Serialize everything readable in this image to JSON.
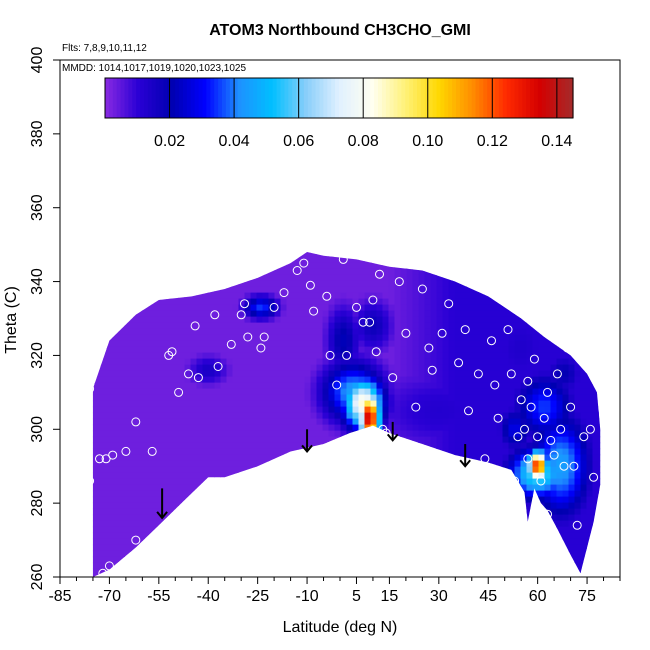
{
  "chart_data": {
    "type": "heatmap",
    "title": "ATOM3 Northbound CH3CHO_GMI",
    "annotation_lines": [
      "Flts: 7,8,9,10,11,12",
      "MMDD: 1014,1017,1019,1020,1023,1025"
    ],
    "xlabel": "Latitude (deg N)",
    "ylabel": "Theta (C)",
    "xlim": [
      -85,
      85
    ],
    "ylim": [
      260,
      400
    ],
    "x_ticks": [
      -85,
      -70,
      -55,
      -40,
      -25,
      -10,
      5,
      15,
      30,
      45,
      60,
      75
    ],
    "x_tick_labels": [
      "-85",
      "-70",
      "-55",
      "-40",
      "-25",
      "-10",
      "5",
      "15",
      "30",
      "45",
      "60",
      "75"
    ],
    "y_ticks": [
      260,
      280,
      300,
      320,
      340,
      360,
      380,
      400
    ],
    "y_tick_labels": [
      "260",
      "280",
      "300",
      "320",
      "340",
      "360",
      "380",
      "400"
    ],
    "grid": false,
    "colorbar": {
      "range": [
        0,
        0.145
      ],
      "tick_values": [
        0.02,
        0.04,
        0.06,
        0.08,
        0.1,
        0.12,
        0.14
      ],
      "tick_labels": [
        "0.02",
        "0.04",
        "0.06",
        "0.08",
        "0.10",
        "0.12",
        "0.14"
      ],
      "placement": "top",
      "colors": [
        "#8a2be2",
        "#2a00d5",
        "#0000b0",
        "#0000ff",
        "#1e90ff",
        "#00bfff",
        "#87cefa",
        "#e0f0ff",
        "#fffff0",
        "#fff176",
        "#ffd700",
        "#ff8c00",
        "#ff2a00",
        "#d40000",
        "#a52a2a"
      ]
    },
    "domain_top_theta": [
      {
        "lat": -75,
        "theta": 311
      },
      {
        "lat": -70,
        "theta": 324
      },
      {
        "lat": -62,
        "theta": 331
      },
      {
        "lat": -55,
        "theta": 335
      },
      {
        "lat": -45,
        "theta": 336
      },
      {
        "lat": -35,
        "theta": 338
      },
      {
        "lat": -25,
        "theta": 341
      },
      {
        "lat": -15,
        "theta": 345
      },
      {
        "lat": -10,
        "theta": 348
      },
      {
        "lat": -5,
        "theta": 347
      },
      {
        "lat": 5,
        "theta": 346
      },
      {
        "lat": 15,
        "theta": 344
      },
      {
        "lat": 25,
        "theta": 343
      },
      {
        "lat": 35,
        "theta": 340
      },
      {
        "lat": 45,
        "theta": 336
      },
      {
        "lat": 55,
        "theta": 330
      },
      {
        "lat": 62,
        "theta": 325
      },
      {
        "lat": 70,
        "theta": 320
      },
      {
        "lat": 75,
        "theta": 315
      },
      {
        "lat": 78,
        "theta": 310
      },
      {
        "lat": 79,
        "theta": 300
      }
    ],
    "domain_bottom_theta": [
      {
        "lat": -75,
        "theta": 260
      },
      {
        "lat": -70,
        "theta": 262
      },
      {
        "lat": -62,
        "theta": 268
      },
      {
        "lat": -55,
        "theta": 274
      },
      {
        "lat": -47,
        "theta": 281
      },
      {
        "lat": -40,
        "theta": 287
      },
      {
        "lat": -35,
        "theta": 287
      },
      {
        "lat": -25,
        "theta": 290
      },
      {
        "lat": -15,
        "theta": 294
      },
      {
        "lat": -5,
        "theta": 296
      },
      {
        "lat": 3,
        "theta": 299
      },
      {
        "lat": 10,
        "theta": 301
      },
      {
        "lat": 15,
        "theta": 299
      },
      {
        "lat": 25,
        "theta": 296
      },
      {
        "lat": 35,
        "theta": 293
      },
      {
        "lat": 45,
        "theta": 291
      },
      {
        "lat": 52,
        "theta": 289
      },
      {
        "lat": 56,
        "theta": 283
      },
      {
        "lat": 57,
        "theta": 275
      },
      {
        "lat": 59,
        "theta": 284
      },
      {
        "lat": 61,
        "theta": 280
      },
      {
        "lat": 63,
        "theta": 278
      },
      {
        "lat": 66,
        "theta": 273
      },
      {
        "lat": 70,
        "theta": 266
      },
      {
        "lat": 73,
        "theta": 261
      },
      {
        "lat": 75,
        "theta": 268
      },
      {
        "lat": 77,
        "theta": 275
      },
      {
        "lat": 79,
        "theta": 285
      },
      {
        "lat": 79,
        "theta": 300
      }
    ],
    "background_value": 0.003,
    "features": [
      {
        "lat": 9,
        "theta": 303,
        "rx": 3,
        "ry": 7,
        "value": 0.14
      },
      {
        "lat": 7,
        "theta": 307,
        "rx": 6,
        "ry": 7,
        "value": 0.085
      },
      {
        "lat": 4,
        "theta": 310,
        "rx": 9,
        "ry": 8,
        "value": 0.045
      },
      {
        "lat": 1,
        "theta": 324,
        "rx": 5,
        "ry": 9,
        "value": 0.022
      },
      {
        "lat": 10,
        "theta": 328,
        "rx": 6,
        "ry": 7,
        "value": 0.018
      },
      {
        "lat": -24,
        "theta": 333,
        "rx": 5,
        "ry": 3,
        "value": 0.035
      },
      {
        "lat": -40,
        "theta": 316,
        "rx": 6,
        "ry": 4,
        "value": 0.015
      },
      {
        "lat": 30,
        "theta": 305,
        "rx": 22,
        "ry": 12,
        "value": 0.012
      },
      {
        "lat": 60,
        "theta": 290,
        "rx": 3,
        "ry": 4,
        "value": 0.13
      },
      {
        "lat": 60,
        "theta": 288,
        "rx": 9,
        "ry": 7,
        "value": 0.06
      },
      {
        "lat": 67,
        "theta": 290,
        "rx": 9,
        "ry": 14,
        "value": 0.045
      },
      {
        "lat": 62,
        "theta": 306,
        "rx": 9,
        "ry": 9,
        "value": 0.035
      },
      {
        "lat": 53,
        "theta": 300,
        "rx": 5,
        "ry": 6,
        "value": 0.028
      },
      {
        "lat": 68,
        "theta": 315,
        "rx": 6,
        "ry": 6,
        "value": 0.02
      },
      {
        "lat": 55,
        "theta": 322,
        "rx": 12,
        "ry": 14,
        "value": 0.013
      }
    ],
    "surface_arrows": [
      {
        "lat": -54,
        "theta_from": 284,
        "theta_to": 276
      },
      {
        "lat": -10,
        "theta_from": 300,
        "theta_to": 294
      },
      {
        "lat": 16,
        "theta_from": 302,
        "theta_to": 297
      },
      {
        "lat": 38,
        "theta_from": 296,
        "theta_to": 290
      }
    ],
    "observations": [
      {
        "lat": -76,
        "theta": 311
      },
      {
        "lat": -77,
        "theta": 296
      },
      {
        "lat": -76,
        "theta": 286
      },
      {
        "lat": -73,
        "theta": 292
      },
      {
        "lat": -71,
        "theta": 292
      },
      {
        "lat": -69,
        "theta": 293
      },
      {
        "lat": -70,
        "theta": 263
      },
      {
        "lat": -72,
        "theta": 261
      },
      {
        "lat": -65,
        "theta": 294
      },
      {
        "lat": -62,
        "theta": 270
      },
      {
        "lat": -62,
        "theta": 302
      },
      {
        "lat": -57,
        "theta": 294
      },
      {
        "lat": -52,
        "theta": 320
      },
      {
        "lat": -51,
        "theta": 321
      },
      {
        "lat": -49,
        "theta": 310
      },
      {
        "lat": -46,
        "theta": 315
      },
      {
        "lat": -44,
        "theta": 328
      },
      {
        "lat": -43,
        "theta": 314
      },
      {
        "lat": -38,
        "theta": 331
      },
      {
        "lat": -37,
        "theta": 317
      },
      {
        "lat": -33,
        "theta": 323
      },
      {
        "lat": -30,
        "theta": 331
      },
      {
        "lat": -29,
        "theta": 334
      },
      {
        "lat": -28,
        "theta": 325
      },
      {
        "lat": -24,
        "theta": 322
      },
      {
        "lat": -23,
        "theta": 325
      },
      {
        "lat": -20,
        "theta": 333
      },
      {
        "lat": -17,
        "theta": 337
      },
      {
        "lat": -13,
        "theta": 343
      },
      {
        "lat": -11,
        "theta": 345
      },
      {
        "lat": -9,
        "theta": 339
      },
      {
        "lat": -8,
        "theta": 332
      },
      {
        "lat": -4,
        "theta": 336
      },
      {
        "lat": -3,
        "theta": 320
      },
      {
        "lat": -1,
        "theta": 312
      },
      {
        "lat": 1,
        "theta": 346
      },
      {
        "lat": 2,
        "theta": 320
      },
      {
        "lat": 5,
        "theta": 333
      },
      {
        "lat": 7,
        "theta": 329
      },
      {
        "lat": 9,
        "theta": 329
      },
      {
        "lat": 10,
        "theta": 335
      },
      {
        "lat": 11,
        "theta": 321
      },
      {
        "lat": 12,
        "theta": 342
      },
      {
        "lat": 13,
        "theta": 300
      },
      {
        "lat": 14,
        "theta": 299
      },
      {
        "lat": 16,
        "theta": 314
      },
      {
        "lat": 18,
        "theta": 340
      },
      {
        "lat": 20,
        "theta": 326
      },
      {
        "lat": 23,
        "theta": 306
      },
      {
        "lat": 25,
        "theta": 338
      },
      {
        "lat": 27,
        "theta": 322
      },
      {
        "lat": 28,
        "theta": 316
      },
      {
        "lat": 31,
        "theta": 326
      },
      {
        "lat": 33,
        "theta": 334
      },
      {
        "lat": 36,
        "theta": 318
      },
      {
        "lat": 38,
        "theta": 327
      },
      {
        "lat": 39,
        "theta": 305
      },
      {
        "lat": 41,
        "theta": 339
      },
      {
        "lat": 42,
        "theta": 315
      },
      {
        "lat": 44,
        "theta": 292
      },
      {
        "lat": 46,
        "theta": 324
      },
      {
        "lat": 47,
        "theta": 312
      },
      {
        "lat": 48,
        "theta": 303
      },
      {
        "lat": 51,
        "theta": 327
      },
      {
        "lat": 52,
        "theta": 315
      },
      {
        "lat": 53,
        "theta": 286
      },
      {
        "lat": 54,
        "theta": 298
      },
      {
        "lat": 55,
        "theta": 308
      },
      {
        "lat": 56,
        "theta": 300
      },
      {
        "lat": 57,
        "theta": 313
      },
      {
        "lat": 57,
        "theta": 292
      },
      {
        "lat": 58,
        "theta": 306
      },
      {
        "lat": 59,
        "theta": 319
      },
      {
        "lat": 60,
        "theta": 298
      },
      {
        "lat": 61,
        "theta": 286
      },
      {
        "lat": 62,
        "theta": 303
      },
      {
        "lat": 63,
        "theta": 310
      },
      {
        "lat": 63,
        "theta": 277
      },
      {
        "lat": 64,
        "theta": 297
      },
      {
        "lat": 65,
        "theta": 293
      },
      {
        "lat": 66,
        "theta": 315
      },
      {
        "lat": 67,
        "theta": 300
      },
      {
        "lat": 68,
        "theta": 290
      },
      {
        "lat": 69,
        "theta": 322
      },
      {
        "lat": 70,
        "theta": 306
      },
      {
        "lat": 71,
        "theta": 290
      },
      {
        "lat": 72,
        "theta": 274
      },
      {
        "lat": 74,
        "theta": 298
      },
      {
        "lat": 76,
        "theta": 300
      },
      {
        "lat": 77,
        "theta": 287
      }
    ]
  }
}
